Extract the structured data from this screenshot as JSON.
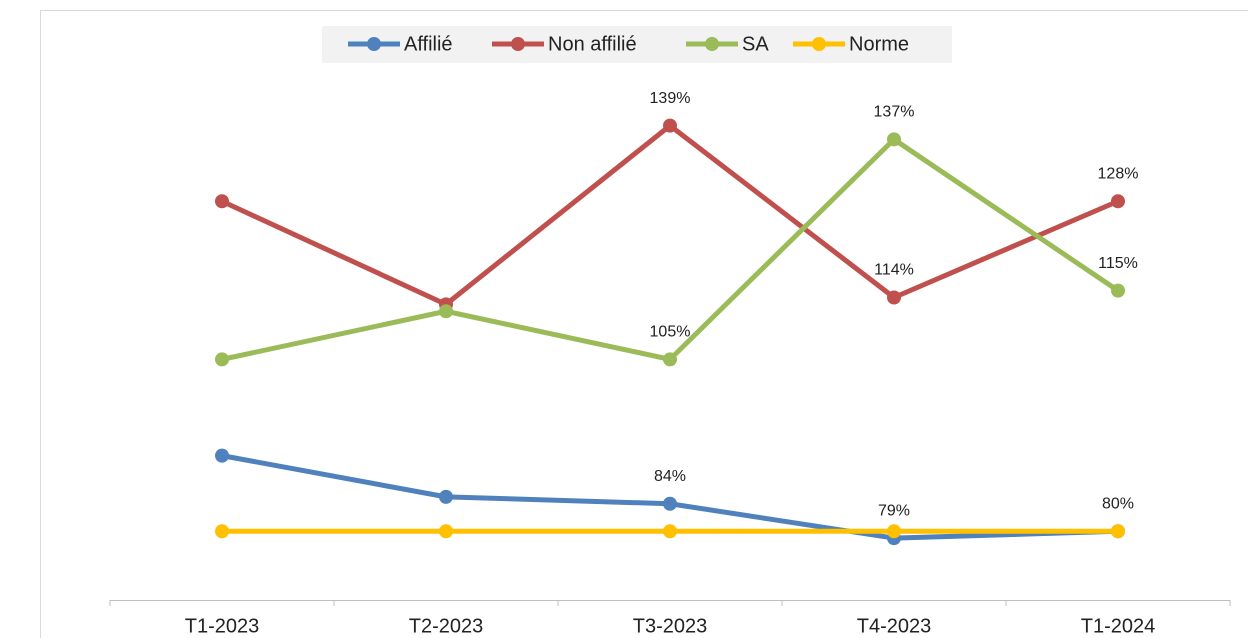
{
  "chart_data": {
    "type": "line",
    "categories": [
      "T1-2023",
      "T2-2023",
      "T3-2023",
      "T4-2023",
      "T1-2024"
    ],
    "series": [
      {
        "name": "Affilié",
        "color": "#4f81bd",
        "values": [
          91,
          85,
          84,
          79,
          80
        ],
        "value_labels": [
          null,
          null,
          "84%",
          "79%",
          "80%"
        ]
      },
      {
        "name": "Non affilié",
        "color": "#c0504d",
        "values": [
          128,
          113,
          139,
          114,
          128
        ],
        "value_labels": [
          null,
          null,
          "139%",
          "114%",
          "128%"
        ]
      },
      {
        "name": "SA",
        "color": "#9bbb59",
        "values": [
          105,
          112,
          105,
          137,
          115
        ],
        "value_labels": [
          null,
          null,
          "105%",
          "137%",
          "115%"
        ]
      },
      {
        "name": "Norme",
        "color": "#ffc000",
        "values": [
          80,
          80,
          80,
          80,
          80
        ]
      }
    ],
    "ylim": [
      70,
      150
    ],
    "grid": false,
    "legend": "top"
  }
}
